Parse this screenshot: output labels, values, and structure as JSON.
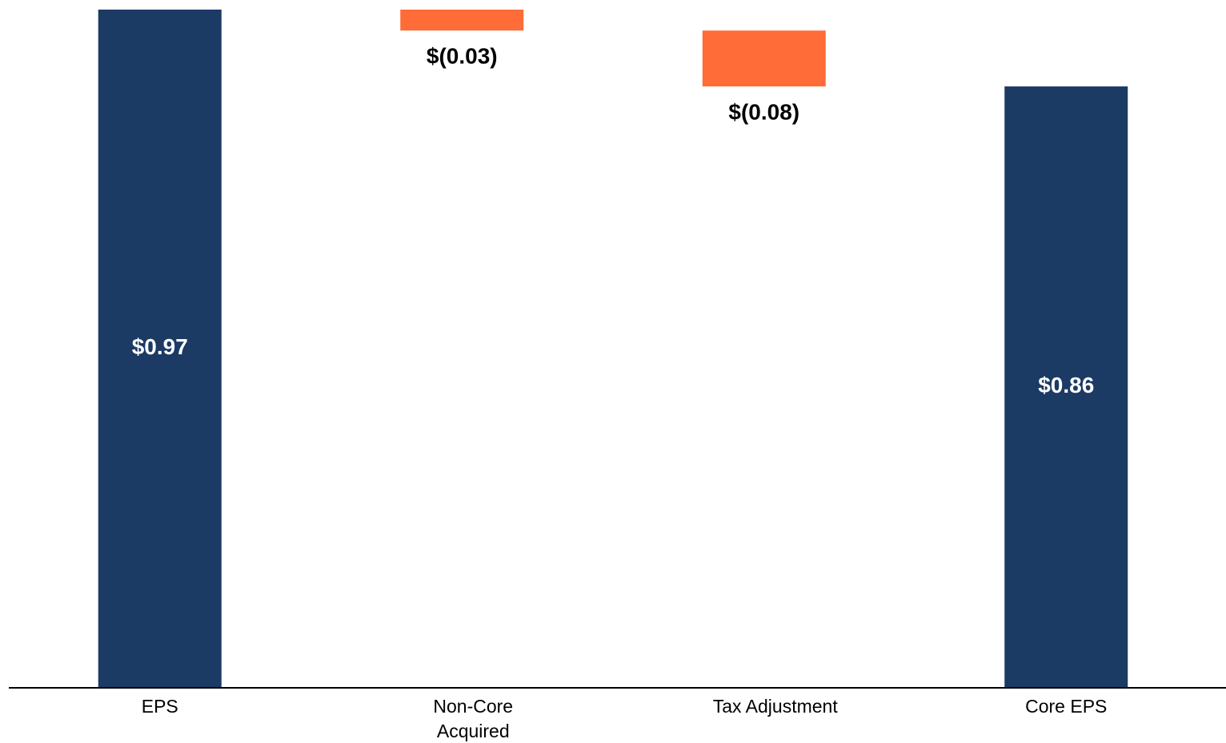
{
  "chart_data": {
    "type": "waterfall",
    "categories": [
      "EPS",
      "Non-Core\nAcquired",
      "Tax Adjustment",
      "Core EPS"
    ],
    "values": [
      0.97,
      -0.03,
      -0.08,
      0.86
    ],
    "value_labels": [
      "$0.97",
      "$(0.03)",
      "$(0.08)",
      "$0.86"
    ],
    "colors": [
      "#1b3a64",
      "#ff6c37",
      "#ff6c37",
      "#1b3a64"
    ],
    "ylim": [
      0,
      0.97
    ]
  }
}
